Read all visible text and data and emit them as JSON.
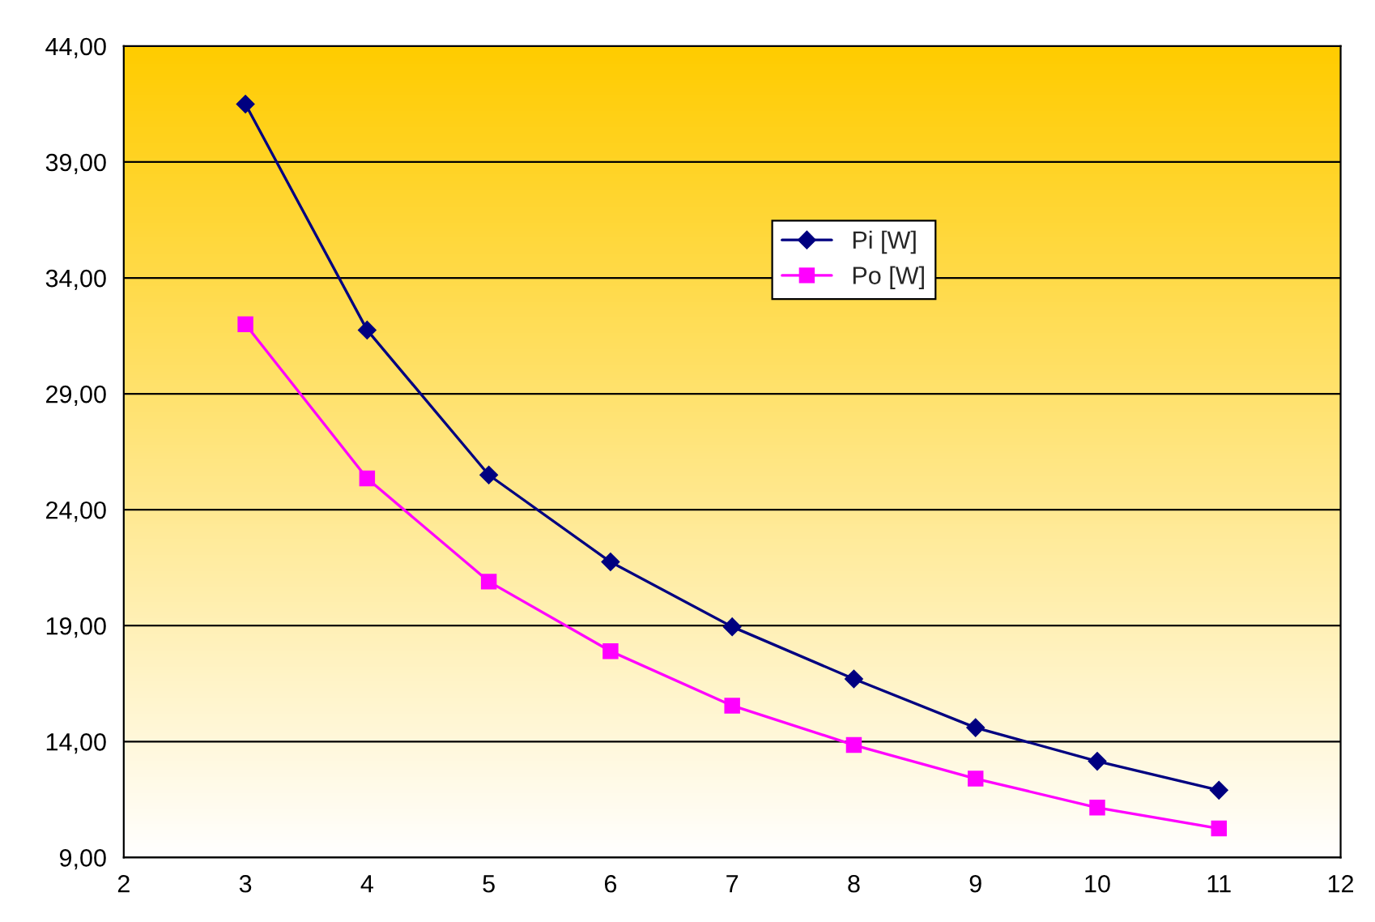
{
  "chart_data": {
    "type": "line",
    "x": [
      3,
      4,
      5,
      6,
      7,
      8,
      9,
      10,
      11
    ],
    "series": [
      {
        "name": "Pi [W]",
        "color": "#000080",
        "marker": "diamond",
        "values": [
          41.5,
          31.75,
          25.5,
          21.75,
          18.95,
          16.7,
          14.6,
          13.15,
          11.9
        ]
      },
      {
        "name": "Po [W]",
        "color": "#ff00ff",
        "marker": "square",
        "values": [
          32.0,
          25.35,
          20.9,
          17.9,
          15.55,
          13.85,
          12.4,
          11.15,
          10.25
        ]
      }
    ],
    "xlim": [
      2,
      12
    ],
    "xticks": [
      2,
      3,
      4,
      5,
      6,
      7,
      8,
      9,
      10,
      11,
      12
    ],
    "ylim": [
      9,
      44
    ],
    "yticks": [
      {
        "value": 9,
        "label": "9,00"
      },
      {
        "value": 14,
        "label": "14,00"
      },
      {
        "value": 19,
        "label": "19,00"
      },
      {
        "value": 24,
        "label": "24,00"
      },
      {
        "value": 29,
        "label": "29,00"
      },
      {
        "value": 34,
        "label": "34,00"
      },
      {
        "value": 39,
        "label": "39,00"
      },
      {
        "value": 44,
        "label": "44,00"
      }
    ],
    "grid": "y",
    "legend": "top",
    "line_style": "solid"
  }
}
